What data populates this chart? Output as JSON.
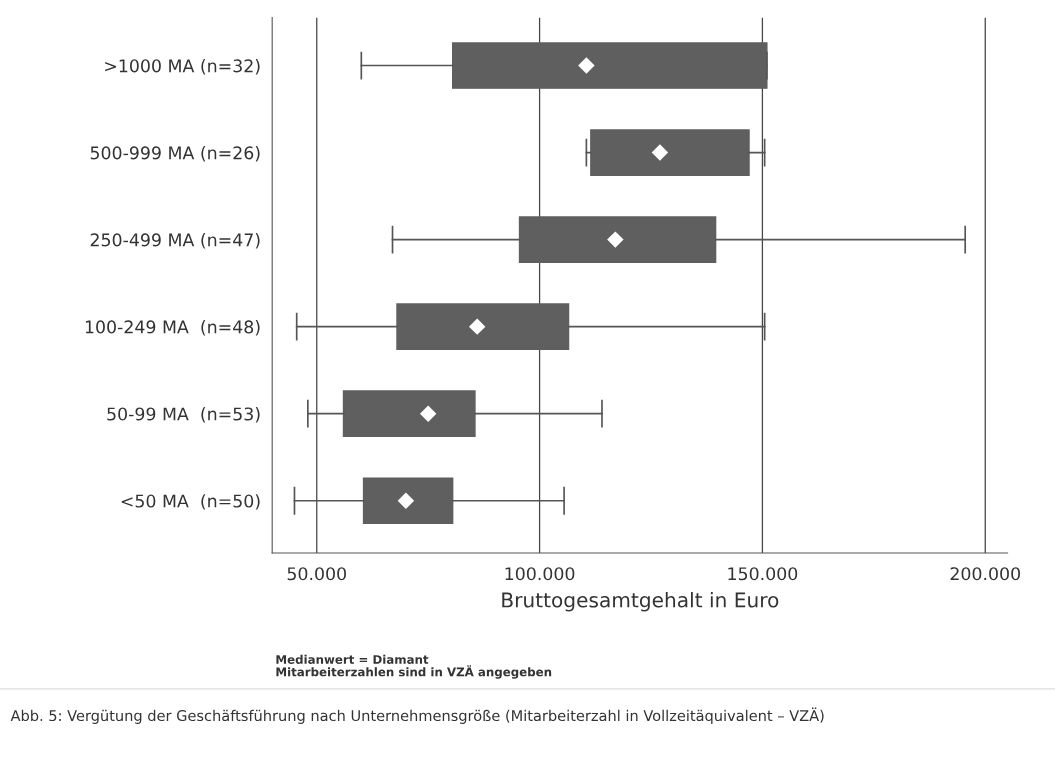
{
  "chart_data": {
    "type": "box",
    "orientation": "horizontal",
    "categories": [
      ">1000 MA (n=32)",
      "500-999 MA (n=26)",
      "250-499 MA (n=47)",
      "100-249 MA  (n=48)",
      "50-99 MA  (n=53)",
      "<50 MA  (n=50)"
    ],
    "boxes": [
      {
        "low": 60000,
        "q1": 80500,
        "median": 110500,
        "q3": 151000,
        "high": 151000
      },
      {
        "low": 110500,
        "q1": 111500,
        "median": 127000,
        "q3": 147000,
        "high": 150500
      },
      {
        "low": 67000,
        "q1": 95500,
        "median": 117000,
        "q3": 139500,
        "high": 195500
      },
      {
        "low": 45500,
        "q1": 68000,
        "median": 86000,
        "q3": 106500,
        "high": 150500
      },
      {
        "low": 48000,
        "q1": 56000,
        "median": 75000,
        "q3": 85500,
        "high": 114000
      },
      {
        "low": 45000,
        "q1": 60500,
        "median": 70000,
        "q3": 80500,
        "high": 105500
      }
    ],
    "color": "#5f5f5f",
    "marker": "diamond",
    "xlabel": "Bruttogesamtgehalt in Euro",
    "xlim": [
      40000,
      205000
    ],
    "xticks": [
      {
        "value": 50000,
        "label": "50.000"
      },
      {
        "value": 100000,
        "label": "100.000"
      },
      {
        "value": 150000,
        "label": "150.000"
      },
      {
        "value": 200000,
        "label": "200.000"
      }
    ],
    "grid": "x",
    "annotations": [
      "Medianwert = Diamant",
      "Mitarbeiterzahlen sind in VZÄ angegeben",
      "Abb. 5: Vergütung der Geschäftsführung nach Unternehmensgröße (Mitarbeiterzahl in Vollzeitäquivalent – VZÄ)"
    ]
  }
}
